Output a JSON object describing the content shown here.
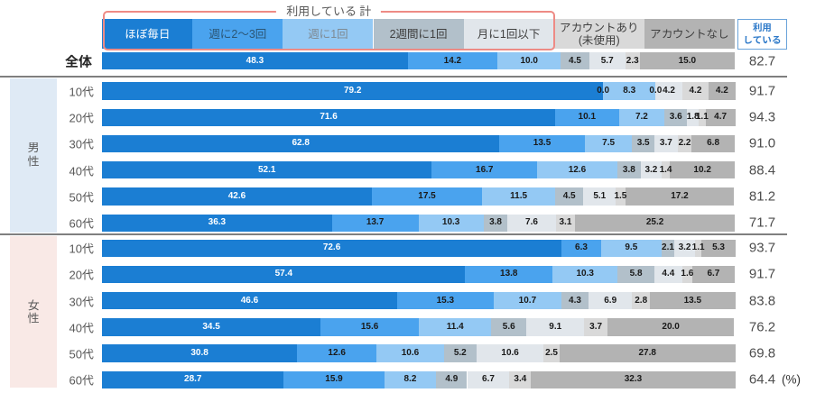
{
  "header": {
    "bracket_label": "利用している 計",
    "total_box_label": "利用\nしている"
  },
  "footer": {
    "unit_label": "(%)"
  },
  "colors": {
    "bracket_border": "#ee8b85",
    "total_box_border": "#6aa3da",
    "total_box_text": "#2e7ac9",
    "separator": "#7f7f7f",
    "male_band": "#dfeaf5",
    "female_band": "#f9e9e6"
  },
  "chart_data": {
    "type": "bar",
    "stacked": true,
    "orientation": "horizontal",
    "value_unit": "%",
    "axis": {
      "min": 0,
      "max": 100
    },
    "bracket_covers_first_n_series": 5,
    "series": [
      {
        "name": "ほぼ毎日",
        "color": "#1b7ed3",
        "label_color": "#ffffff",
        "legend_text_color": "#ffffff"
      },
      {
        "name": "週に2〜3回",
        "color": "#4aa3ee",
        "label_color": "#1a1a1a",
        "legend_text_color": "#2b5574"
      },
      {
        "name": "週に1回",
        "color": "#94c9f4",
        "label_color": "#1a1a1a",
        "legend_text_color": "#7e8a93"
      },
      {
        "name": "2週間に1回",
        "color": "#b2c0ca",
        "label_color": "#1a1a1a",
        "legend_text_color": "#404040"
      },
      {
        "name": "月に1回以下",
        "color": "#e1e6eb",
        "label_color": "#1a1a1a",
        "legend_text_color": "#404040"
      },
      {
        "name": "アカウントあり\n(未使用)",
        "color": "#d9d9d9",
        "label_color": "#1a1a1a",
        "legend_text_color": "#404040"
      },
      {
        "name": "アカウントなし",
        "color": "#b3b3b3",
        "label_color": "#1a1a1a",
        "legend_text_color": "#404040"
      }
    ],
    "total_column_name": "利用している",
    "groups": [
      {
        "label": "",
        "rows": [
          {
            "label": "全体",
            "values": [
              48.3,
              14.2,
              10.0,
              4.5,
              5.7,
              2.3,
              15.0
            ],
            "total": 82.7
          }
        ]
      },
      {
        "label": "男性",
        "rows": [
          {
            "label": "10代",
            "values": [
              79.2,
              0.0,
              8.3,
              0.0,
              4.2,
              4.2,
              4.2
            ],
            "total": 91.7
          },
          {
            "label": "20代",
            "values": [
              71.6,
              10.1,
              7.2,
              3.6,
              1.8,
              1.1,
              4.7
            ],
            "total": 94.3
          },
          {
            "label": "30代",
            "values": [
              62.8,
              13.5,
              7.5,
              3.5,
              3.7,
              2.2,
              6.8
            ],
            "total": 91.0
          },
          {
            "label": "40代",
            "values": [
              52.1,
              16.7,
              12.6,
              3.8,
              3.2,
              1.4,
              10.2
            ],
            "total": 88.4
          },
          {
            "label": "50代",
            "values": [
              42.6,
              17.5,
              11.5,
              4.5,
              5.1,
              1.5,
              17.2
            ],
            "total": 81.2
          },
          {
            "label": "60代",
            "values": [
              36.3,
              13.7,
              10.3,
              3.8,
              7.6,
              3.1,
              25.2
            ],
            "total": 71.7
          }
        ]
      },
      {
        "label": "女性",
        "rows": [
          {
            "label": "10代",
            "values": [
              72.6,
              6.3,
              9.5,
              2.1,
              3.2,
              1.1,
              5.3
            ],
            "total": 93.7
          },
          {
            "label": "20代",
            "values": [
              57.4,
              13.8,
              10.3,
              5.8,
              4.4,
              1.6,
              6.7
            ],
            "total": 91.7
          },
          {
            "label": "30代",
            "values": [
              46.6,
              15.3,
              10.7,
              4.3,
              6.9,
              2.8,
              13.5
            ],
            "total": 83.8
          },
          {
            "label": "40代",
            "values": [
              34.5,
              15.6,
              11.4,
              5.6,
              9.1,
              3.7,
              20.0
            ],
            "total": 76.2
          },
          {
            "label": "50代",
            "values": [
              30.8,
              12.6,
              10.6,
              5.2,
              10.6,
              2.5,
              27.8
            ],
            "total": 69.8
          },
          {
            "label": "60代",
            "values": [
              28.7,
              15.9,
              8.2,
              4.9,
              6.7,
              3.4,
              32.3
            ],
            "total": 64.4
          }
        ]
      }
    ]
  }
}
